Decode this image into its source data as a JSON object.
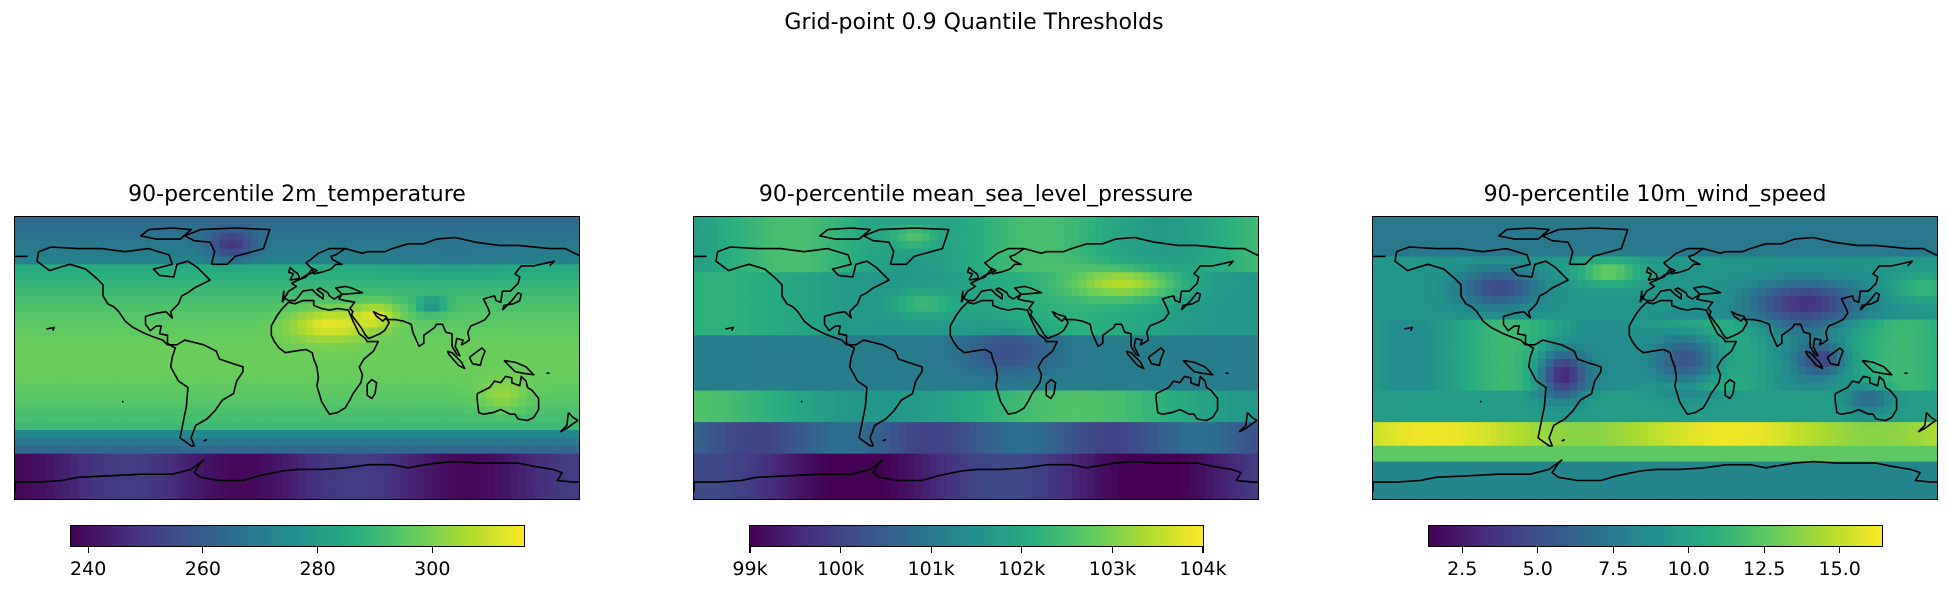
{
  "suptitle": "Grid-point 0.9 Quantile Thresholds",
  "colormap": "viridis",
  "viridis_stops": [
    "#440154",
    "#472d7b",
    "#3b528b",
    "#2c728e",
    "#21918c",
    "#28ae80",
    "#5ec962",
    "#addc30",
    "#fde725"
  ],
  "coastline_color": "#000000",
  "chart_data": [
    {
      "type": "heatmap",
      "title": "90-percentile 2m_temperature",
      "variable": "2m_temperature",
      "projection": "PlateCarree (global)",
      "grid": false,
      "colorbar": {
        "orientation": "horizontal",
        "location": "bottom",
        "vmin": 237,
        "vmax": 316,
        "ticks": [
          240,
          260,
          280,
          300
        ],
        "tick_labels": [
          "240",
          "260",
          "280",
          "300"
        ]
      },
      "field": {
        "pattern": "temperature"
      }
    },
    {
      "type": "heatmap",
      "title": "90-percentile mean_sea_level_pressure",
      "variable": "mean_sea_level_pressure",
      "projection": "PlateCarree (global)",
      "grid": false,
      "colorbar": {
        "orientation": "horizontal",
        "location": "bottom",
        "vmin": 99000,
        "vmax": 104000,
        "ticks": [
          99000,
          100000,
          101000,
          102000,
          103000,
          104000
        ],
        "tick_labels": [
          "99k",
          "100k",
          "101k",
          "102k",
          "103k",
          "104k"
        ]
      },
      "field": {
        "pattern": "pressure"
      }
    },
    {
      "type": "heatmap",
      "title": "90-percentile 10m_wind_speed",
      "variable": "10m_wind_speed",
      "projection": "PlateCarree (global)",
      "grid": false,
      "colorbar": {
        "orientation": "horizontal",
        "location": "bottom",
        "vmin": 1.4,
        "vmax": 16.4,
        "ticks": [
          2.5,
          5.0,
          7.5,
          10.0,
          12.5,
          15.0
        ],
        "tick_labels": [
          "2.5",
          "5.0",
          "7.5",
          "10.0",
          "12.5",
          "15.0"
        ]
      },
      "field": {
        "pattern": "wind"
      }
    }
  ]
}
